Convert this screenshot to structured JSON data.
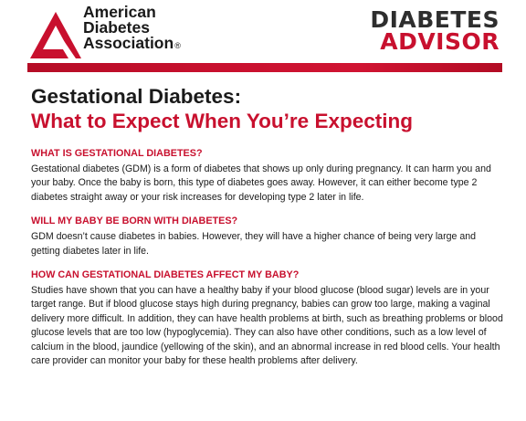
{
  "header": {
    "ada_logo": {
      "lines": [
        "American",
        "Diabetes",
        "Association"
      ],
      "registered_mark": "®"
    },
    "advisor_logo": {
      "top": "DIABETES",
      "bottom": "ADVISOR"
    },
    "colors": {
      "brand_red": "#c8102e",
      "text_dark": "#1a1a1a"
    }
  },
  "title": {
    "line1": "Gestational Diabetes:",
    "line2": "What to Expect When You’re Expecting"
  },
  "sections": [
    {
      "heading": "WHAT IS GESTATIONAL DIABETES?",
      "body": "Gestational diabetes (GDM) is a form of diabetes that shows up only during pregnancy. It can harm you and your baby. Once the baby is born, this type of diabetes goes away. However, it can either become type 2 diabetes straight away or your risk increases for developing type 2 later in life."
    },
    {
      "heading": "WILL MY BABY BE BORN WITH DIABETES?",
      "body": "GDM doesn’t cause diabetes in babies. However, they will have a higher chance of being very large and getting diabetes later in life."
    },
    {
      "heading": "HOW CAN GESTATIONAL DIABETES AFFECT MY BABY?",
      "body": "Studies have shown that you can have a healthy baby if your blood glucose (blood sugar) levels are in your target range. But if blood glucose stays high during pregnancy, babies can grow too large, making a vaginal delivery more difficult. In addition, they can have health problems at birth, such as breathing problems or blood glucose levels that are too low (hypoglycemia). They can also have other conditions, such as a low level of calcium in the blood, jaundice (yellowing of the skin), and an abnormal increase in red blood cells. Your health care provider can monitor your baby for these health problems after delivery."
    }
  ]
}
